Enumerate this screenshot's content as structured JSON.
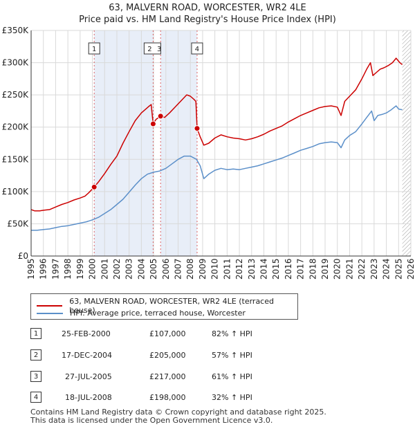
{
  "title": "63, MALVERN ROAD, WORCESTER, WR2 4LE",
  "subtitle": "Price paid vs. HM Land Registry's House Price Index (HPI)",
  "colors": {
    "property": "#cc0000",
    "hpi": "#5b8fc9",
    "shade": "#e8eef8",
    "grid": "#d9d9d9"
  },
  "chart_data": {
    "type": "line",
    "ylim": [
      0,
      350000
    ],
    "xlim": [
      1995,
      2026
    ],
    "yticks": [
      0,
      50000,
      100000,
      150000,
      200000,
      250000,
      300000,
      350000
    ],
    "ytick_labels": [
      "£0",
      "£50K",
      "£100K",
      "£150K",
      "£200K",
      "£250K",
      "£300K",
      "£350K"
    ],
    "xticks": [
      "1995",
      "1996",
      "1997",
      "1998",
      "1999",
      "2000",
      "2001",
      "2002",
      "2003",
      "2004",
      "2005",
      "2006",
      "2007",
      "2008",
      "2009",
      "2010",
      "2011",
      "2012",
      "2013",
      "2014",
      "2015",
      "2016",
      "2017",
      "2018",
      "2019",
      "2020",
      "2021",
      "2022",
      "2023",
      "2024",
      "2025",
      "2026"
    ],
    "shaded_ranges": [
      [
        2000.15,
        2004.96
      ],
      [
        2005.57,
        2008.55
      ]
    ],
    "hatched_from": 2025.3,
    "series": [
      {
        "name": "63, MALVERN ROAD, WORCESTER, WR2 4LE (terraced house)",
        "color": "#cc0000",
        "points": [
          [
            1995.0,
            72000
          ],
          [
            1995.3,
            70000
          ],
          [
            1995.7,
            70000
          ],
          [
            1996.0,
            71000
          ],
          [
            1996.5,
            72000
          ],
          [
            1997.0,
            76000
          ],
          [
            1997.5,
            80000
          ],
          [
            1998.0,
            83000
          ],
          [
            1998.5,
            87000
          ],
          [
            1999.0,
            90000
          ],
          [
            1999.4,
            93000
          ],
          [
            1999.7,
            98000
          ],
          [
            2000.15,
            107000
          ],
          [
            2000.5,
            115000
          ],
          [
            2001.0,
            128000
          ],
          [
            2001.5,
            142000
          ],
          [
            2002.0,
            155000
          ],
          [
            2002.5,
            175000
          ],
          [
            2003.0,
            193000
          ],
          [
            2003.5,
            210000
          ],
          [
            2004.0,
            222000
          ],
          [
            2004.6,
            232000
          ],
          [
            2004.8,
            235000
          ],
          [
            2004.96,
            205000
          ],
          [
            2005.2,
            212000
          ],
          [
            2005.57,
            217000
          ],
          [
            2005.9,
            215000
          ],
          [
            2006.3,
            222000
          ],
          [
            2006.8,
            232000
          ],
          [
            2007.3,
            242000
          ],
          [
            2007.7,
            250000
          ],
          [
            2008.0,
            248000
          ],
          [
            2008.3,
            243000
          ],
          [
            2008.45,
            240000
          ],
          [
            2008.55,
            198000
          ],
          [
            2008.8,
            185000
          ],
          [
            2009.1,
            172000
          ],
          [
            2009.5,
            175000
          ],
          [
            2010.0,
            183000
          ],
          [
            2010.5,
            188000
          ],
          [
            2011.0,
            185000
          ],
          [
            2011.5,
            183000
          ],
          [
            2012.0,
            182000
          ],
          [
            2012.5,
            180000
          ],
          [
            2013.0,
            182000
          ],
          [
            2013.5,
            185000
          ],
          [
            2014.0,
            189000
          ],
          [
            2014.5,
            194000
          ],
          [
            2015.0,
            198000
          ],
          [
            2015.5,
            202000
          ],
          [
            2016.0,
            208000
          ],
          [
            2016.5,
            213000
          ],
          [
            2017.0,
            218000
          ],
          [
            2017.5,
            222000
          ],
          [
            2018.0,
            226000
          ],
          [
            2018.5,
            230000
          ],
          [
            2019.0,
            232000
          ],
          [
            2019.5,
            233000
          ],
          [
            2020.0,
            231000
          ],
          [
            2020.3,
            218000
          ],
          [
            2020.6,
            240000
          ],
          [
            2021.0,
            248000
          ],
          [
            2021.5,
            258000
          ],
          [
            2022.0,
            275000
          ],
          [
            2022.4,
            290000
          ],
          [
            2022.7,
            300000
          ],
          [
            2022.9,
            280000
          ],
          [
            2023.2,
            285000
          ],
          [
            2023.5,
            290000
          ],
          [
            2023.8,
            292000
          ],
          [
            2024.2,
            296000
          ],
          [
            2024.5,
            300000
          ],
          [
            2024.8,
            307000
          ],
          [
            2025.1,
            300000
          ],
          [
            2025.3,
            297000
          ]
        ]
      },
      {
        "name": "HPI: Average price, terraced house, Worcester",
        "color": "#5b8fc9",
        "points": [
          [
            1995.0,
            40000
          ],
          [
            1995.5,
            40000
          ],
          [
            1996.0,
            41000
          ],
          [
            1996.5,
            42000
          ],
          [
            1997.0,
            44000
          ],
          [
            1997.5,
            46000
          ],
          [
            1998.0,
            47000
          ],
          [
            1998.5,
            49000
          ],
          [
            1999.0,
            51000
          ],
          [
            1999.5,
            53000
          ],
          [
            2000.0,
            56000
          ],
          [
            2000.5,
            60000
          ],
          [
            2001.0,
            66000
          ],
          [
            2001.5,
            72000
          ],
          [
            2002.0,
            80000
          ],
          [
            2002.5,
            88000
          ],
          [
            2003.0,
            99000
          ],
          [
            2003.5,
            110000
          ],
          [
            2004.0,
            120000
          ],
          [
            2004.5,
            127000
          ],
          [
            2005.0,
            130000
          ],
          [
            2005.5,
            132000
          ],
          [
            2006.0,
            136000
          ],
          [
            2006.5,
            143000
          ],
          [
            2007.0,
            150000
          ],
          [
            2007.5,
            155000
          ],
          [
            2008.0,
            155000
          ],
          [
            2008.5,
            150000
          ],
          [
            2008.8,
            140000
          ],
          [
            2009.1,
            120000
          ],
          [
            2009.5,
            127000
          ],
          [
            2010.0,
            133000
          ],
          [
            2010.5,
            136000
          ],
          [
            2011.0,
            134000
          ],
          [
            2011.5,
            135000
          ],
          [
            2012.0,
            134000
          ],
          [
            2012.5,
            136000
          ],
          [
            2013.0,
            138000
          ],
          [
            2013.5,
            140000
          ],
          [
            2014.0,
            143000
          ],
          [
            2014.5,
            146000
          ],
          [
            2015.0,
            149000
          ],
          [
            2015.5,
            152000
          ],
          [
            2016.0,
            156000
          ],
          [
            2016.5,
            160000
          ],
          [
            2017.0,
            164000
          ],
          [
            2017.5,
            167000
          ],
          [
            2018.0,
            170000
          ],
          [
            2018.5,
            174000
          ],
          [
            2019.0,
            176000
          ],
          [
            2019.5,
            177000
          ],
          [
            2020.0,
            176000
          ],
          [
            2020.3,
            168000
          ],
          [
            2020.6,
            180000
          ],
          [
            2021.0,
            187000
          ],
          [
            2021.5,
            193000
          ],
          [
            2022.0,
            205000
          ],
          [
            2022.4,
            215000
          ],
          [
            2022.8,
            225000
          ],
          [
            2023.0,
            210000
          ],
          [
            2023.3,
            218000
          ],
          [
            2023.7,
            220000
          ],
          [
            2024.0,
            222000
          ],
          [
            2024.4,
            227000
          ],
          [
            2024.8,
            233000
          ],
          [
            2025.0,
            228000
          ],
          [
            2025.3,
            227000
          ]
        ]
      }
    ],
    "sales": [
      {
        "label": "1",
        "x": 2000.15,
        "y": 107000
      },
      {
        "label": "2",
        "x": 2004.96,
        "y": 205000
      },
      {
        "label": "3",
        "x": 2005.57,
        "y": 217000
      },
      {
        "label": "4",
        "x": 2008.55,
        "y": 198000
      }
    ]
  },
  "legend": {
    "property": "63, MALVERN ROAD, WORCESTER, WR2 4LE (terraced house)",
    "hpi": "HPI: Average price, terraced house, Worcester"
  },
  "transactions": [
    {
      "num": "1",
      "date": "25-FEB-2000",
      "price": "£107,000",
      "hpi": "82% ↑ HPI"
    },
    {
      "num": "2",
      "date": "17-DEC-2004",
      "price": "£205,000",
      "hpi": "57% ↑ HPI"
    },
    {
      "num": "3",
      "date": "27-JUL-2005",
      "price": "£217,000",
      "hpi": "61% ↑ HPI"
    },
    {
      "num": "4",
      "date": "18-JUL-2008",
      "price": "£198,000",
      "hpi": "32% ↑ HPI"
    }
  ],
  "footer": {
    "line1": "Contains HM Land Registry data © Crown copyright and database right 2025.",
    "line2": "This data is licensed under the Open Government Licence v3.0."
  }
}
